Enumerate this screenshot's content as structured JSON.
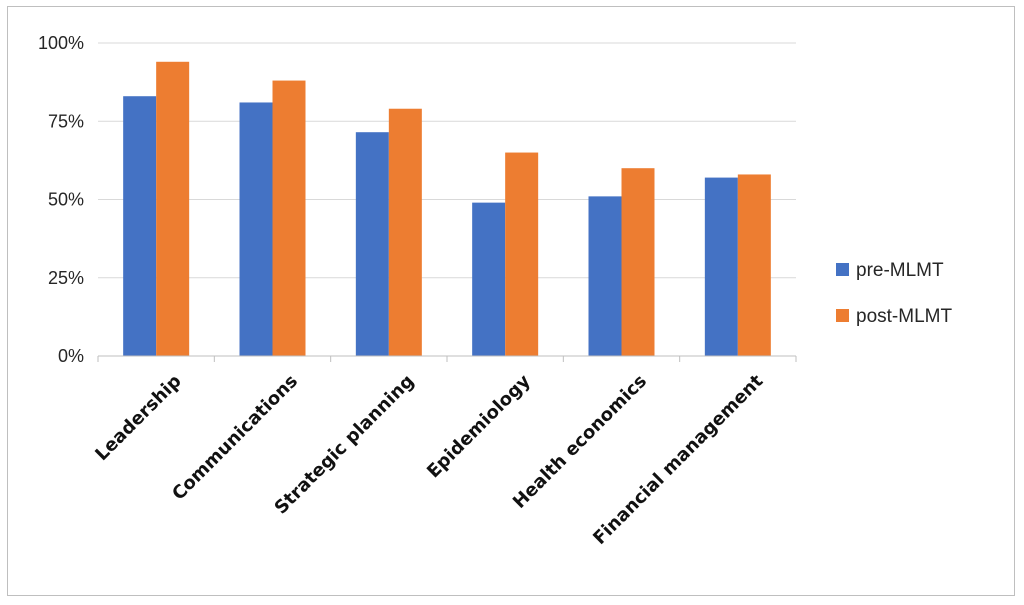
{
  "chart_data": {
    "type": "bar",
    "title": "",
    "xlabel": "",
    "ylabel": "",
    "categories": [
      "Leadership",
      "Communications",
      "Strategic planning",
      "Epidemiology",
      "Health economics",
      "Financial management"
    ],
    "series": [
      {
        "name": "pre-MLMT",
        "color": "#4472c4",
        "values": [
          0.83,
          0.81,
          0.715,
          0.49,
          0.51,
          0.57
        ]
      },
      {
        "name": "post-MLMT",
        "color": "#ed7d31",
        "values": [
          0.94,
          0.88,
          0.79,
          0.65,
          0.6,
          0.58
        ]
      }
    ],
    "ylim": [
      0,
      1
    ],
    "y_ticks": [
      {
        "value": 0,
        "label": "0%"
      },
      {
        "value": 0.25,
        "label": "25%"
      },
      {
        "value": 0.5,
        "label": "50%"
      },
      {
        "value": 0.75,
        "label": "75%"
      },
      {
        "value": 1,
        "label": "100%"
      }
    ],
    "grid": true,
    "legend_position": "right"
  }
}
